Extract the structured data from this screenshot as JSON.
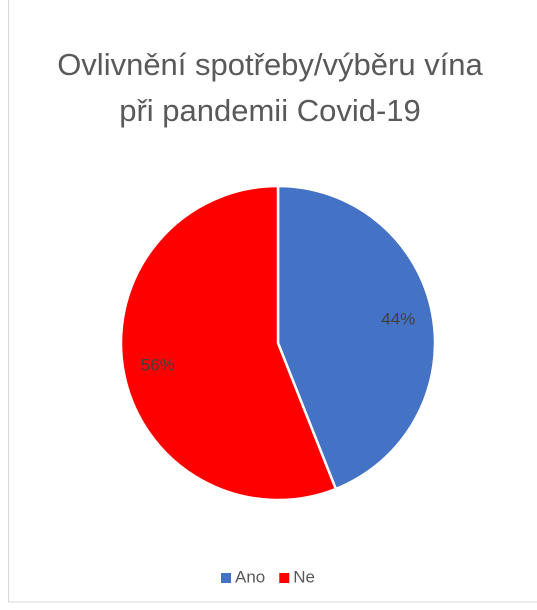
{
  "chart_data": {
    "type": "pie",
    "title": "Ovlivnění spotřeby/výběru vína při pandemii Covid-19",
    "categories": [
      "Ano",
      "Ne"
    ],
    "values": [
      44,
      56
    ],
    "value_labels": [
      "44%",
      "56%"
    ],
    "colors": [
      "#4472c4",
      "#ff0000"
    ],
    "legend": "bottom"
  }
}
